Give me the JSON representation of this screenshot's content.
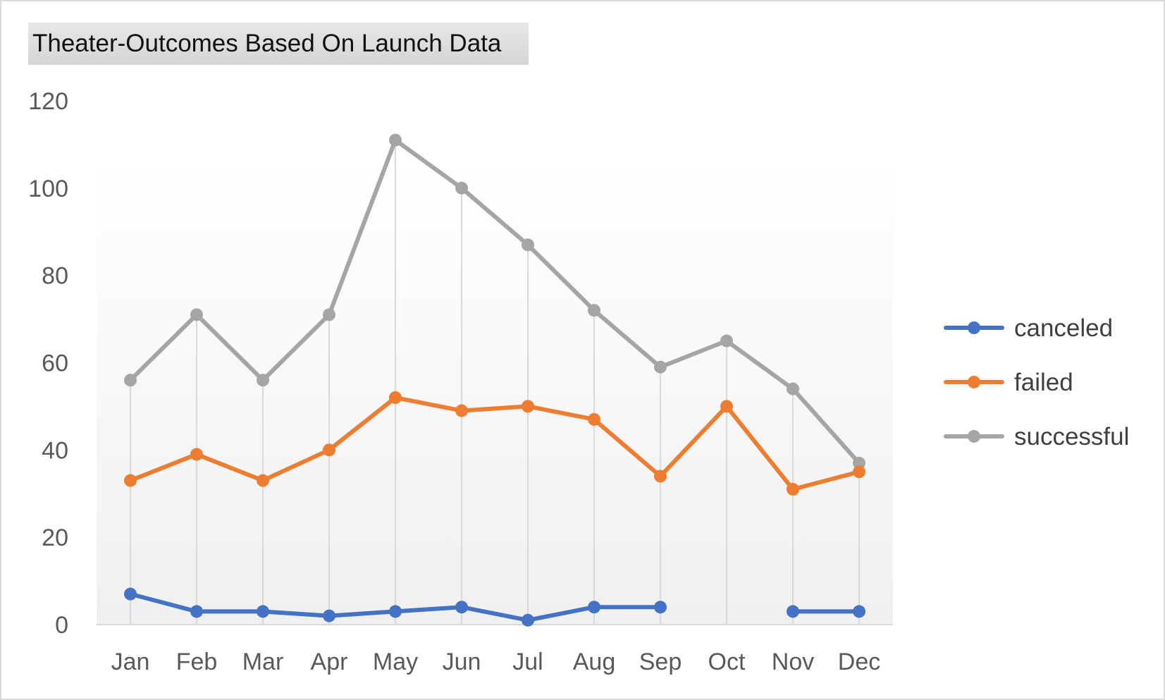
{
  "chart_data": {
    "type": "line",
    "title": "Theater-Outcomes  Based On Launch Data",
    "xlabel": "",
    "ylabel": "",
    "categories": [
      "Jan",
      "Feb",
      "Mar",
      "Apr",
      "May",
      "Jun",
      "Jul",
      "Aug",
      "Sep",
      "Oct",
      "Nov",
      "Dec"
    ],
    "ylim": [
      0,
      120
    ],
    "yticks": [
      0,
      20,
      40,
      60,
      80,
      100,
      120
    ],
    "grid": "vertical drop lines per category",
    "legend_position": "right",
    "series": [
      {
        "name": "canceled",
        "color": "#4472C4",
        "values": [
          7,
          3,
          3,
          2,
          3,
          4,
          1,
          4,
          4,
          null,
          3,
          3
        ]
      },
      {
        "name": "failed",
        "color": "#ED7D31",
        "values": [
          33,
          39,
          33,
          40,
          52,
          49,
          50,
          47,
          34,
          50,
          31,
          35
        ]
      },
      {
        "name": "successful",
        "color": "#A5A5A5",
        "values": [
          56,
          71,
          56,
          71,
          111,
          100,
          87,
          72,
          59,
          65,
          54,
          37
        ]
      }
    ]
  },
  "colors": {
    "plot_gradient_top": "#ffffff",
    "plot_gradient_bottom": "#f0f0f0",
    "axis_line": "#d9d9d9",
    "drop_line": "#d9d9d9",
    "tick_label": "#595959"
  }
}
